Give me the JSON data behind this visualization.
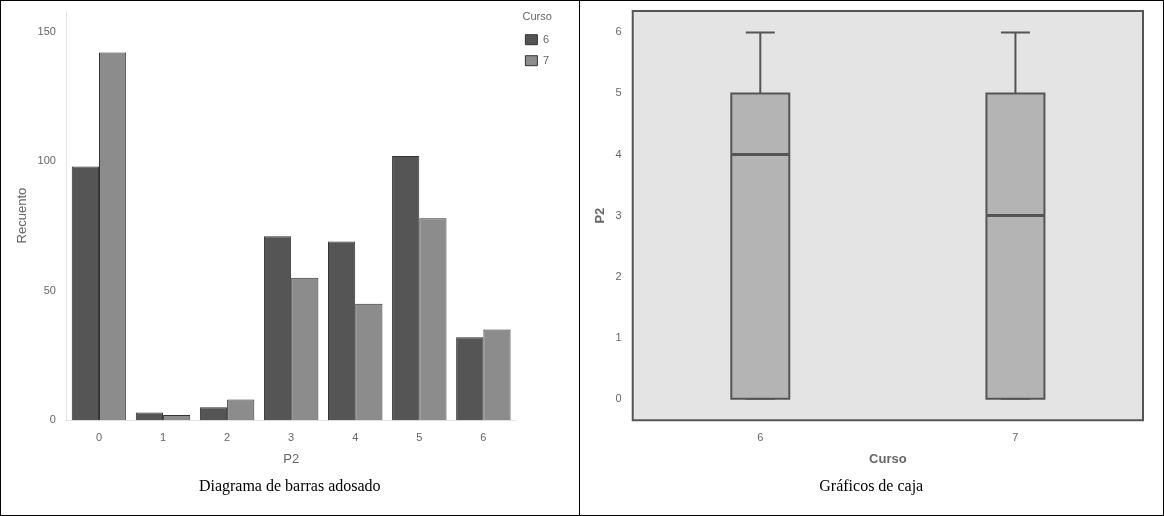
{
  "chart_data": [
    {
      "type": "bar",
      "categories": [
        "0",
        "1",
        "2",
        "3",
        "4",
        "5",
        "6"
      ],
      "xlabel": "P2",
      "ylabel": "Recuento",
      "legend_title": "Curso",
      "legend": "top right",
      "grid": false,
      "series": [
        {
          "name": "6",
          "color": "#555555",
          "values": [
            98,
            3,
            5,
            71,
            69,
            102,
            32
          ]
        },
        {
          "name": "7",
          "color": "#8c8c8c",
          "values": [
            142,
            2,
            8,
            55,
            45,
            78,
            35
          ]
        }
      ],
      "ylim": [
        0,
        158
      ],
      "yticks": [
        0,
        50,
        100,
        150
      ],
      "annotations": [
        "Diagrama de barras adosado"
      ]
    },
    {
      "type": "box",
      "categories": [
        "6",
        "7"
      ],
      "xlabel": "Curso",
      "ylabel": "P2",
      "grid": false,
      "series": [
        {
          "color": "#b4b4b4",
          "boxes": [
            {
              "low": 0,
              "q1": 0,
              "median": 4,
              "q3": 5,
              "high": 6
            },
            {
              "low": 0,
              "q1": 0,
              "median": 3,
              "q3": 5,
              "high": 6
            }
          ]
        }
      ],
      "ylim": [
        -0.35,
        6.35
      ],
      "yticks": [
        0,
        1,
        2,
        3,
        4,
        5,
        6
      ],
      "annotations": [
        "Gráficos de caja"
      ]
    }
  ]
}
